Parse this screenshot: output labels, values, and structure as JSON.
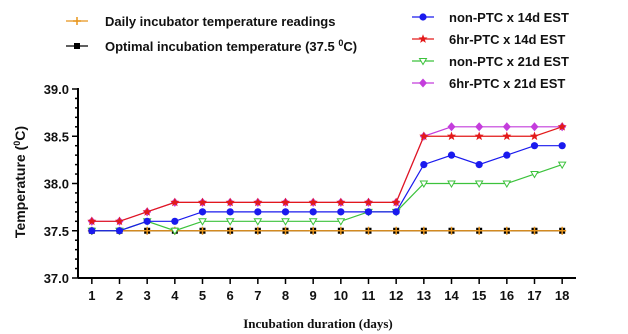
{
  "chart_data": {
    "type": "line",
    "title": "",
    "xlabel": "Incubation duration (days)",
    "ylabel": "Temperature (⁰C)",
    "ylabel_main": "Temperature (",
    "ylabel_sup": "0",
    "ylabel_end": "C)",
    "x": [
      1,
      2,
      3,
      4,
      5,
      6,
      7,
      8,
      9,
      10,
      11,
      12,
      13,
      14,
      15,
      16,
      17,
      18
    ],
    "xlim": [
      0.5,
      18.5
    ],
    "ylim": [
      37.0,
      39.0
    ],
    "yticks": [
      37.0,
      37.5,
      38.0,
      38.5,
      39.0
    ],
    "ytick_labels": [
      "37.0",
      "37.5",
      "38.0",
      "38.5",
      "39.0"
    ],
    "grid": false,
    "legend_position": "top",
    "series": [
      {
        "name": "Optimal incubation temperature (37.5 ⁰C)",
        "name_main": "Optimal incubation temperature (37.5 ",
        "name_sup": "0",
        "name_end": "C)",
        "color": "#000000",
        "marker": "square",
        "values": [
          37.5,
          37.5,
          37.5,
          37.5,
          37.5,
          37.5,
          37.5,
          37.5,
          37.5,
          37.5,
          37.5,
          37.5,
          37.5,
          37.5,
          37.5,
          37.5,
          37.5,
          37.5
        ]
      },
      {
        "name": "Daily incubator temperature readings",
        "color": "#e8951c",
        "marker": "plus",
        "values": [
          37.5,
          37.5,
          37.5,
          37.5,
          37.5,
          37.5,
          37.5,
          37.5,
          37.5,
          37.5,
          37.5,
          37.5,
          37.5,
          37.5,
          37.5,
          37.5,
          37.5,
          37.5
        ]
      },
      {
        "name": "non-PTC x 21d  EST",
        "color": "#3cc23c",
        "marker": "triangle-down",
        "values": [
          37.5,
          37.5,
          37.6,
          37.5,
          37.6,
          37.6,
          37.6,
          37.6,
          37.6,
          37.6,
          37.7,
          37.7,
          38.0,
          38.0,
          38.0,
          38.0,
          38.1,
          38.2
        ]
      },
      {
        "name": "non-PTC x 14d  EST",
        "color": "#1a1aee",
        "marker": "circle",
        "values": [
          37.5,
          37.5,
          37.6,
          37.6,
          37.7,
          37.7,
          37.7,
          37.7,
          37.7,
          37.7,
          37.7,
          37.7,
          38.2,
          38.3,
          38.2,
          38.3,
          38.4,
          38.4
        ]
      },
      {
        "name": "6hr-PTC x 21d  EST",
        "color": "#c43ddc",
        "marker": "diamond",
        "values": [
          37.6,
          37.6,
          37.7,
          37.8,
          37.8,
          37.8,
          37.8,
          37.8,
          37.8,
          37.8,
          37.8,
          37.8,
          38.5,
          38.6,
          38.6,
          38.6,
          38.6,
          38.6
        ]
      },
      {
        "name": "6hr-PTC x 14d  EST",
        "color": "#e31a1a",
        "marker": "star",
        "values": [
          37.6,
          37.6,
          37.7,
          37.8,
          37.8,
          37.8,
          37.8,
          37.8,
          37.8,
          37.8,
          37.8,
          37.8,
          38.5,
          38.5,
          38.5,
          38.5,
          38.5,
          38.6
        ]
      }
    ],
    "legend_left": [
      "Daily incubator temperature readings",
      "Optimal incubation temperature (37.5 ⁰C)"
    ],
    "legend_right": [
      "non-PTC x 14d  EST",
      "6hr-PTC x 14d  EST",
      "non-PTC x 21d  EST",
      "6hr-PTC x 21d  EST"
    ]
  }
}
